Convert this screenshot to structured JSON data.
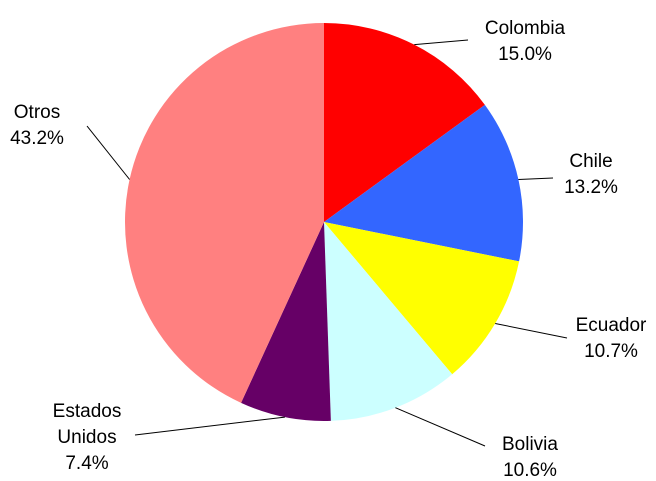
{
  "chart_data": {
    "type": "pie",
    "slices": [
      {
        "name": "Colombia",
        "label_lines": [
          "Colombia"
        ],
        "value": 15.0,
        "value_label": "15.0%",
        "color": "#ff0000"
      },
      {
        "name": "Chile",
        "label_lines": [
          "Chile"
        ],
        "value": 13.2,
        "value_label": "13.2%",
        "color": "#3366ff"
      },
      {
        "name": "Ecuador",
        "label_lines": [
          "Ecuador"
        ],
        "value": 10.7,
        "value_label": "10.7%",
        "color": "#ffff00"
      },
      {
        "name": "Bolivia",
        "label_lines": [
          "Bolivia"
        ],
        "value": 10.6,
        "value_label": "10.6%",
        "color": "#ccffff"
      },
      {
        "name": "Estados Unidos",
        "label_lines": [
          "Estados",
          "Unidos"
        ],
        "value": 7.4,
        "value_label": "7.4%",
        "color": "#660066"
      },
      {
        "name": "Otros",
        "label_lines": [
          "Otros"
        ],
        "value": 43.2,
        "value_label": "43.2%",
        "color": "#ff8080"
      }
    ],
    "start": "12 o'clock",
    "direction": "clockwise",
    "legend": "none",
    "labels": "outside with leader lines"
  }
}
